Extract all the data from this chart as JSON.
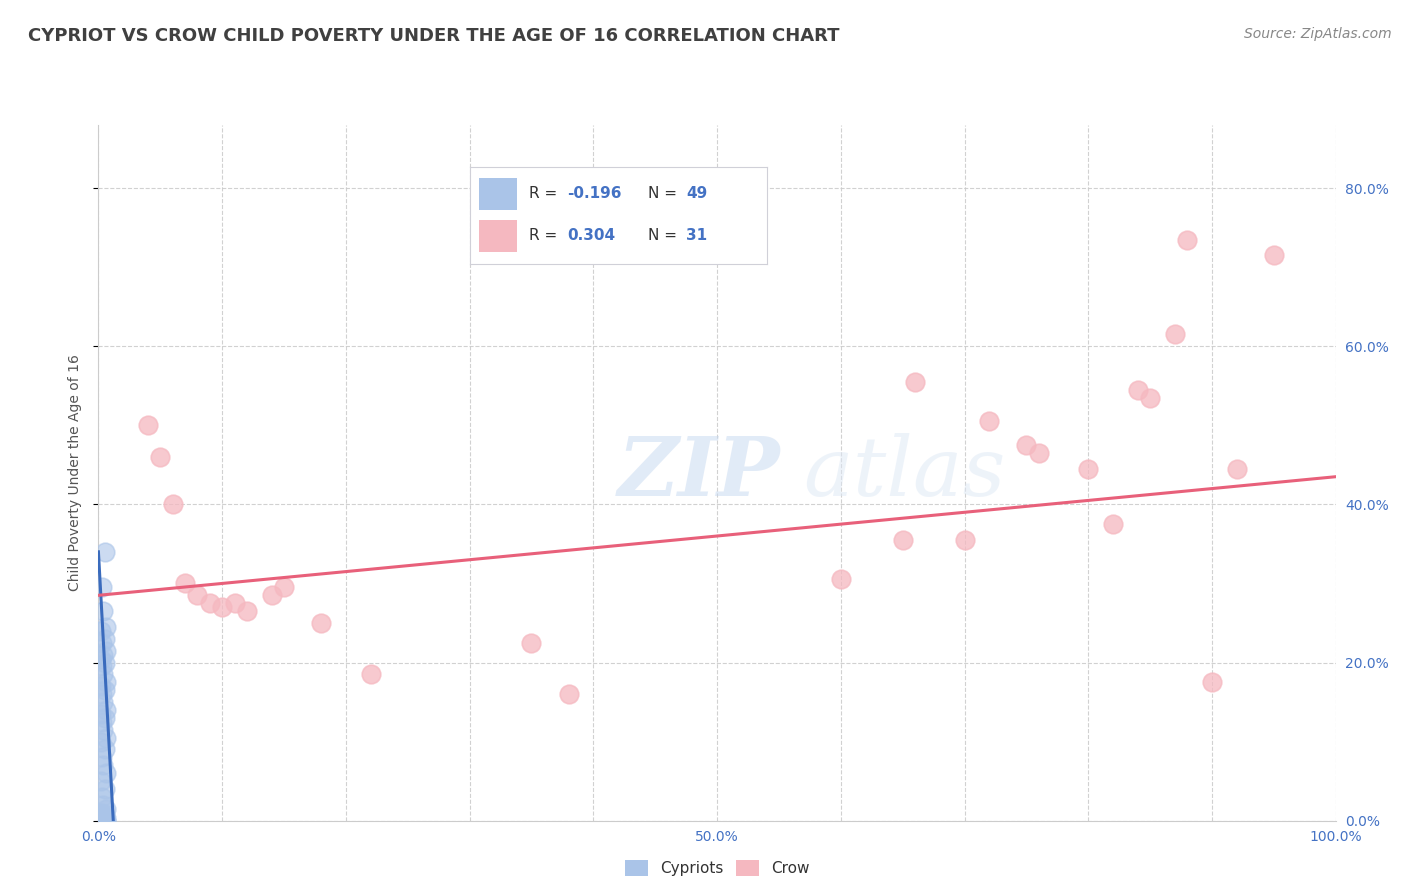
{
  "title": "CYPRIOT VS CROW CHILD POVERTY UNDER THE AGE OF 16 CORRELATION CHART",
  "source": "Source: ZipAtlas.com",
  "ylabel": "Child Poverty Under the Age of 16",
  "watermark_zip": "ZIP",
  "watermark_atlas": "atlas",
  "xlim": [
    0.0,
    1.0
  ],
  "ylim": [
    0.0,
    0.88
  ],
  "xticks": [
    0.0,
    0.1,
    0.2,
    0.3,
    0.4,
    0.5,
    0.6,
    0.7,
    0.8,
    0.9,
    1.0
  ],
  "xtick_labels": [
    "0.0%",
    "",
    "",
    "",
    "",
    "",
    "",
    "",
    "",
    "",
    "100.0%"
  ],
  "x_label_50": "50.0%",
  "ytick_labels_right": [
    "0.0%",
    "20.0%",
    "40.0%",
    "60.0%",
    "80.0%"
  ],
  "yticks": [
    0.0,
    0.2,
    0.4,
    0.6,
    0.8
  ],
  "cypriot_color": "#aac4e8",
  "crow_color": "#f5b8c0",
  "cypriot_line_color": "#3a6bbd",
  "crow_line_color": "#e8607a",
  "background_color": "#ffffff",
  "grid_color": "#cccccc",
  "title_color": "#404040",
  "tick_label_color": "#4472c4",
  "legend_box_color": "#e8e8f0",
  "cypriot_points": [
    [
      0.005,
      0.34
    ],
    [
      0.003,
      0.295
    ],
    [
      0.004,
      0.265
    ],
    [
      0.006,
      0.245
    ],
    [
      0.002,
      0.24
    ],
    [
      0.005,
      0.23
    ],
    [
      0.003,
      0.225
    ],
    [
      0.006,
      0.215
    ],
    [
      0.004,
      0.21
    ],
    [
      0.002,
      0.205
    ],
    [
      0.005,
      0.2
    ],
    [
      0.003,
      0.195
    ],
    [
      0.004,
      0.185
    ],
    [
      0.006,
      0.175
    ],
    [
      0.002,
      0.17
    ],
    [
      0.005,
      0.165
    ],
    [
      0.003,
      0.16
    ],
    [
      0.004,
      0.15
    ],
    [
      0.006,
      0.14
    ],
    [
      0.002,
      0.135
    ],
    [
      0.005,
      0.13
    ],
    [
      0.003,
      0.125
    ],
    [
      0.004,
      0.115
    ],
    [
      0.006,
      0.105
    ],
    [
      0.002,
      0.1
    ],
    [
      0.005,
      0.09
    ],
    [
      0.003,
      0.08
    ],
    [
      0.004,
      0.07
    ],
    [
      0.006,
      0.06
    ],
    [
      0.002,
      0.05
    ],
    [
      0.005,
      0.04
    ],
    [
      0.003,
      0.03
    ],
    [
      0.004,
      0.02
    ],
    [
      0.006,
      0.015
    ],
    [
      0.002,
      0.01
    ],
    [
      0.005,
      0.008
    ],
    [
      0.003,
      0.006
    ],
    [
      0.004,
      0.004
    ],
    [
      0.006,
      0.003
    ],
    [
      0.002,
      0.002
    ],
    [
      0.005,
      0.001
    ],
    [
      0.003,
      0.001
    ],
    [
      0.004,
      0.0
    ],
    [
      0.006,
      0.0
    ],
    [
      0.002,
      0.0
    ],
    [
      0.005,
      0.0
    ],
    [
      0.003,
      0.0
    ],
    [
      0.004,
      0.0
    ],
    [
      0.006,
      0.0
    ]
  ],
  "crow_points": [
    [
      0.04,
      0.5
    ],
    [
      0.05,
      0.46
    ],
    [
      0.06,
      0.4
    ],
    [
      0.07,
      0.3
    ],
    [
      0.08,
      0.285
    ],
    [
      0.09,
      0.275
    ],
    [
      0.1,
      0.27
    ],
    [
      0.11,
      0.275
    ],
    [
      0.12,
      0.265
    ],
    [
      0.14,
      0.285
    ],
    [
      0.15,
      0.295
    ],
    [
      0.18,
      0.25
    ],
    [
      0.22,
      0.185
    ],
    [
      0.35,
      0.225
    ],
    [
      0.38,
      0.16
    ],
    [
      0.6,
      0.305
    ],
    [
      0.65,
      0.355
    ],
    [
      0.66,
      0.555
    ],
    [
      0.7,
      0.355
    ],
    [
      0.72,
      0.505
    ],
    [
      0.75,
      0.475
    ],
    [
      0.76,
      0.465
    ],
    [
      0.8,
      0.445
    ],
    [
      0.82,
      0.375
    ],
    [
      0.84,
      0.545
    ],
    [
      0.85,
      0.535
    ],
    [
      0.87,
      0.615
    ],
    [
      0.88,
      0.735
    ],
    [
      0.9,
      0.175
    ],
    [
      0.92,
      0.445
    ],
    [
      0.95,
      0.715
    ]
  ],
  "crow_trend_x": [
    0.0,
    1.0
  ],
  "crow_trend_y": [
    0.285,
    0.435
  ],
  "cypriot_trend_x": [
    0.0,
    0.012
  ],
  "cypriot_trend_y": [
    0.34,
    0.0
  ]
}
